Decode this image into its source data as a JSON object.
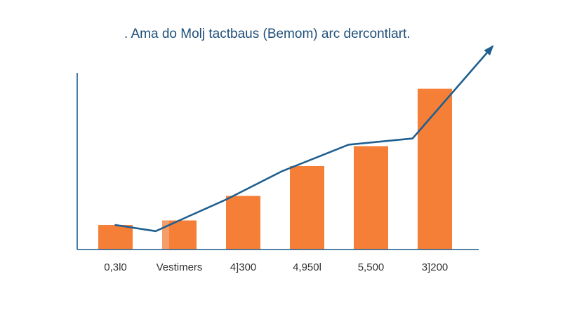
{
  "chart_data": {
    "type": "bar",
    "title": ". Ama do Molj tactbaus (Bemom) arc dercontlart.",
    "categories": [
      "0,3l0",
      "Vestimers",
      "4]300",
      "4,950l",
      "5,500",
      "3]200"
    ],
    "values": [
      3.2,
      3.8,
      7.0,
      10.9,
      13.5,
      21.0
    ],
    "line_values": [
      3.2,
      2.4,
      3.8,
      6.6,
      10.2,
      13.7,
      14.5,
      26.5
    ],
    "line_x": [
      0.0,
      0.63,
      1.0,
      1.75,
      2.6,
      3.65,
      4.65,
      5.9
    ],
    "ylim": [
      0,
      26
    ],
    "grid": false,
    "legend": "none",
    "colors": {
      "bar": "#f57f37",
      "bar_edge": "#f7a273",
      "line": "#1f5f8f",
      "axis": "#1e5a8c",
      "title": "#1f4f7a",
      "tick": "#333333"
    }
  }
}
